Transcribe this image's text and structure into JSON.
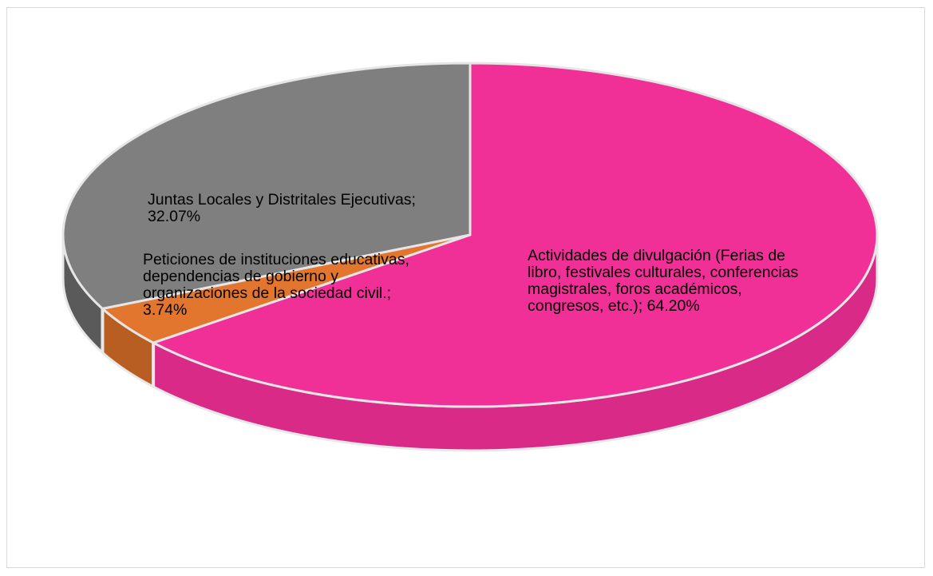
{
  "chart_data": {
    "type": "pie",
    "style": "3d",
    "slices": [
      {
        "label": "Actividades de divulgación (Ferias de libro, festivales culturales, conferencias magistrales, foros académicos, congresos, etc.)",
        "value": 64.2,
        "display": "Actividades de divulgación (Ferias de\nlibro, festivales culturales, conferencias\nmagistrales, foros académicos,\ncongresos, etc.); 64.20%",
        "color": "#f03096",
        "side_color": "#d82a86"
      },
      {
        "label": "Peticiones de instituciones educativas, dependencias de gobierno y organizaciones de la sociedad civil.",
        "value": 3.74,
        "display": "Peticiones de instituciones educativas,\ndependencias de gobierno y\norganizaciones de la sociedad civil.;\n3.74%",
        "color": "#e2762f",
        "side_color": "#b85e22"
      },
      {
        "label": "Juntas Locales y Distritales Ejecutivas",
        "value": 32.07,
        "display": "Juntas Locales y Distritales Ejecutivas;\n32.07%",
        "color": "#7f7f7f",
        "side_color": "#5a5a5a"
      }
    ]
  }
}
